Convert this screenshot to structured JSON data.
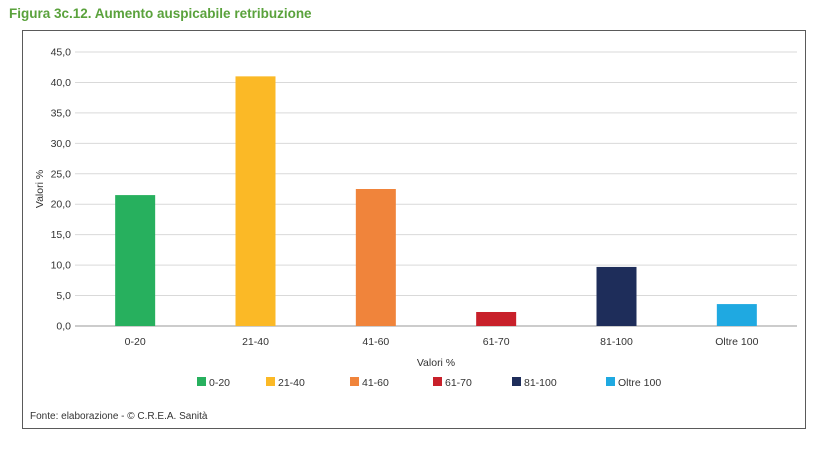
{
  "figure": {
    "title": "Figura 3c.12. Aumento auspicabile retribuzione",
    "source": "Fonte: elaborazione - © C.R.E.A. Sanità"
  },
  "chart_data": {
    "type": "bar",
    "categories": [
      "0-20",
      "21-40",
      "41-60",
      "61-70",
      "81-100",
      "Oltre 100"
    ],
    "values": [
      21.5,
      41.0,
      22.5,
      2.3,
      9.7,
      3.6
    ],
    "colors": [
      "#27b05e",
      "#fbb926",
      "#f0843b",
      "#c8202a",
      "#1e2d5a",
      "#1fa9e1"
    ],
    "xlabel": "Valori %",
    "ylabel": "Valori %",
    "ylim": [
      0,
      45
    ],
    "yticks": [
      "0,0",
      "5,0",
      "10,0",
      "15,0",
      "20,0",
      "25,0",
      "30,0",
      "35,0",
      "40,0",
      "45,0"
    ],
    "grid": true,
    "legend": [
      "0-20",
      "21-40",
      "41-60",
      "61-70",
      "81-100",
      "Oltre 100"
    ],
    "legend_position": "bottom"
  }
}
